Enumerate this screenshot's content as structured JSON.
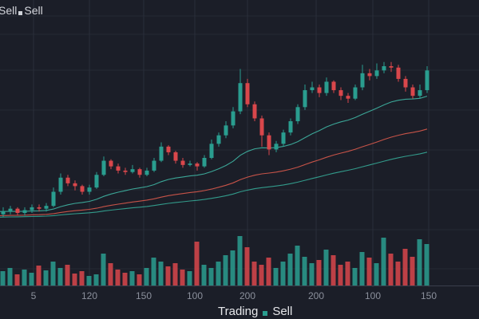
{
  "colors": {
    "background": "#1b1e28",
    "grid": "#2a2e3a",
    "up": "#2a9d8f",
    "down": "#d9474b",
    "ma1": "#3fb5a3",
    "ma2": "#d9594b",
    "ma3": "#35a896",
    "axis_text": "#8b909c"
  },
  "legend_top": {
    "label1": "Sell",
    "label2": "Sell"
  },
  "legend_bottom": {
    "label1": "Trading",
    "label2": "Sell"
  },
  "chart_data": {
    "type": "candlestick",
    "title": "",
    "xlabel": "",
    "ylabel": "",
    "x_tick_labels": [
      "5",
      "120",
      "150",
      "100",
      "200",
      "200",
      "100",
      "150"
    ],
    "ylim": [
      90,
      220
    ],
    "grid": true,
    "legend_position": "top-left",
    "ma_periods": [
      25,
      60,
      100
    ],
    "candles": [
      [
        102,
        107,
        100,
        104
      ],
      [
        104,
        108,
        102,
        106
      ],
      [
        106,
        107,
        101,
        103
      ],
      [
        103,
        107,
        101,
        105
      ],
      [
        105,
        109,
        103,
        107
      ],
      [
        107,
        109,
        104,
        106
      ],
      [
        106,
        110,
        104,
        108
      ],
      [
        108,
        121,
        107,
        118
      ],
      [
        118,
        131,
        116,
        128
      ],
      [
        128,
        130,
        122,
        124
      ],
      [
        124,
        126,
        119,
        122
      ],
      [
        122,
        123,
        116,
        118
      ],
      [
        118,
        123,
        116,
        121
      ],
      [
        121,
        132,
        120,
        130
      ],
      [
        130,
        143,
        129,
        140
      ],
      [
        140,
        141,
        134,
        136
      ],
      [
        136,
        138,
        131,
        133
      ],
      [
        133,
        135,
        130,
        132
      ],
      [
        132,
        137,
        131,
        134
      ],
      [
        134,
        135,
        128,
        130
      ],
      [
        130,
        135,
        129,
        133
      ],
      [
        133,
        142,
        132,
        140
      ],
      [
        140,
        153,
        139,
        150
      ],
      [
        150,
        151,
        144,
        146
      ],
      [
        146,
        147,
        138,
        140
      ],
      [
        140,
        142,
        135,
        137
      ],
      [
        137,
        140,
        136,
        138
      ],
      [
        138,
        139,
        133,
        136
      ],
      [
        136,
        144,
        135,
        142
      ],
      [
        142,
        155,
        141,
        152
      ],
      [
        152,
        160,
        150,
        158
      ],
      [
        158,
        168,
        156,
        165
      ],
      [
        165,
        178,
        163,
        175
      ],
      [
        175,
        205,
        173,
        195
      ],
      [
        195,
        198,
        178,
        180
      ],
      [
        180,
        182,
        168,
        170
      ],
      [
        170,
        172,
        150,
        158
      ],
      [
        158,
        160,
        144,
        148
      ],
      [
        148,
        154,
        146,
        152
      ],
      [
        152,
        162,
        150,
        160
      ],
      [
        160,
        170,
        158,
        168
      ],
      [
        168,
        180,
        166,
        178
      ],
      [
        178,
        194,
        176,
        190
      ],
      [
        190,
        196,
        188,
        192
      ],
      [
        192,
        194,
        185,
        188
      ],
      [
        188,
        199,
        186,
        196
      ],
      [
        196,
        197,
        188,
        190
      ],
      [
        190,
        192,
        183,
        186
      ],
      [
        186,
        188,
        181,
        184
      ],
      [
        184,
        194,
        183,
        192
      ],
      [
        192,
        208,
        190,
        202
      ],
      [
        202,
        205,
        197,
        200
      ],
      [
        200,
        209,
        198,
        204
      ],
      [
        204,
        210,
        202,
        207
      ],
      [
        207,
        210,
        203,
        206
      ],
      [
        206,
        208,
        196,
        198
      ],
      [
        198,
        200,
        189,
        192
      ],
      [
        192,
        194,
        184,
        186
      ],
      [
        186,
        194,
        184,
        190
      ],
      [
        190,
        207,
        188,
        204
      ]
    ],
    "volumes": [
      18,
      22,
      14,
      20,
      16,
      25,
      19,
      30,
      22,
      26,
      15,
      18,
      12,
      14,
      40,
      28,
      20,
      16,
      18,
      14,
      22,
      35,
      30,
      24,
      28,
      20,
      18,
      55,
      26,
      22,
      30,
      38,
      44,
      62,
      48,
      30,
      26,
      35,
      22,
      30,
      40,
      50,
      36,
      28,
      32,
      45,
      38,
      26,
      30,
      22,
      42,
      35,
      28,
      60,
      40,
      30,
      46,
      36,
      58,
      52
    ],
    "volume_max": 70
  }
}
